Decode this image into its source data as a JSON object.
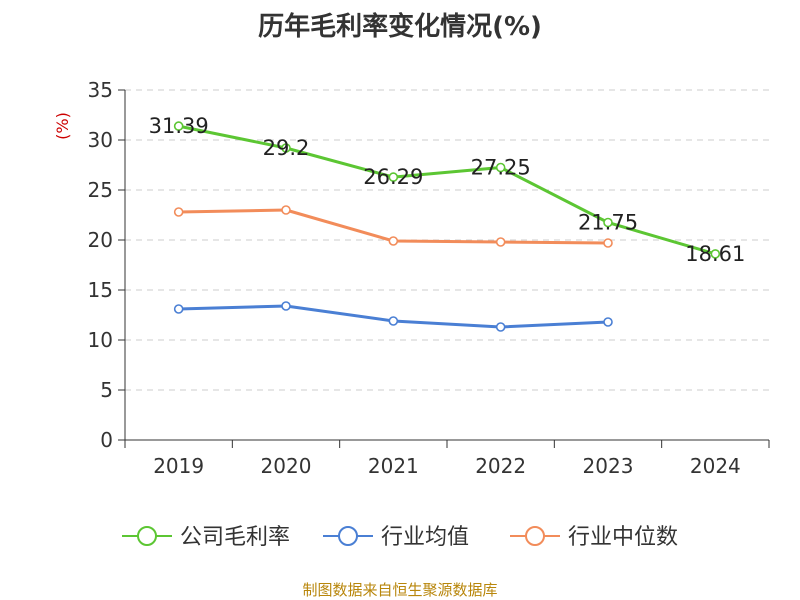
{
  "chart_data": {
    "type": "line",
    "title": "历年毛利率变化情况(%)",
    "ylabel": "(%)",
    "xlabel": "",
    "categories": [
      "2019",
      "2020",
      "2021",
      "2022",
      "2023",
      "2024"
    ],
    "ylim": [
      0,
      35
    ],
    "yticks": [
      0,
      5,
      10,
      15,
      20,
      25,
      30,
      35
    ],
    "grid": true,
    "legend_position": "bottom",
    "series": [
      {
        "name": "公司毛利率",
        "color": "#5cc633",
        "values": [
          31.39,
          29.2,
          26.29,
          27.25,
          21.75,
          18.61
        ],
        "labels": [
          "31.39",
          "29.2",
          "26.29",
          "27.25",
          "21.75",
          "18.61"
        ]
      },
      {
        "name": "行业均值",
        "color": "#4a7fd4",
        "values": [
          13.1,
          13.4,
          11.9,
          11.3,
          11.8,
          null
        ]
      },
      {
        "name": "行业中位数",
        "color": "#f28c5a",
        "values": [
          22.8,
          23.0,
          19.9,
          19.8,
          19.7,
          null
        ]
      }
    ]
  },
  "source": "制图数据来自恒生聚源数据库"
}
